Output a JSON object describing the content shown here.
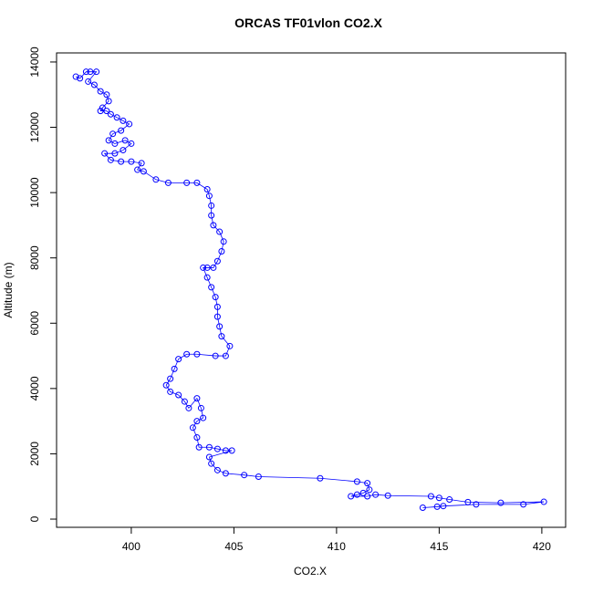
{
  "chart_data": {
    "type": "line",
    "marker": "circle",
    "color": "#0000ff",
    "title": "ORCAS TF01vlon CO2.X",
    "x_label": "CO2.X",
    "y_label": "Altitude (m)",
    "xlim": [
      396.36,
      421.16
    ],
    "ylim": [
      -251,
      14278
    ],
    "xticks": [
      400,
      405,
      410,
      415,
      420
    ],
    "yticks": [
      0,
      2000,
      4000,
      6000,
      8000,
      10000,
      12000,
      14000
    ],
    "x": [
      397.3,
      397.5,
      397.8,
      398.0,
      398.3,
      397.9,
      398.2,
      398.5,
      398.8,
      398.9,
      398.6,
      398.5,
      398.8,
      399.0,
      399.3,
      399.6,
      399.9,
      399.5,
      399.1,
      398.9,
      399.2,
      399.7,
      400.0,
      399.6,
      399.2,
      398.7,
      399.0,
      399.5,
      400.0,
      400.5,
      400.3,
      400.6,
      401.2,
      401.8,
      402.7,
      403.2,
      403.7,
      403.8,
      403.9,
      403.9,
      404.0,
      404.3,
      404.5,
      404.4,
      404.2,
      404.0,
      403.7,
      403.5,
      403.7,
      403.9,
      404.1,
      404.2,
      404.2,
      404.3,
      404.4,
      404.8,
      404.6,
      404.1,
      403.2,
      402.7,
      402.3,
      402.1,
      401.9,
      401.7,
      401.9,
      402.3,
      402.6,
      402.8,
      403.2,
      403.4,
      403.5,
      403.2,
      403.0,
      403.2,
      403.3,
      403.8,
      404.2,
      404.6,
      404.9,
      403.8,
      403.9,
      404.2,
      404.6,
      405.5,
      406.2,
      409.2,
      411.0,
      411.5,
      411.6,
      411.3,
      411.0,
      410.7,
      411.5,
      411.9,
      412.5,
      414.6,
      415.0,
      415.5,
      416.4,
      418.0,
      420.1,
      419.1,
      416.8,
      415.2,
      414.9,
      414.2
    ],
    "values": [
      13550,
      13500,
      13700,
      13700,
      13700,
      13400,
      13300,
      13100,
      13000,
      12800,
      12600,
      12500,
      12500,
      12400,
      12300,
      12200,
      12100,
      11900,
      11800,
      11600,
      11500,
      11600,
      11500,
      11300,
      11200,
      11200,
      11000,
      10950,
      10950,
      10900,
      10700,
      10650,
      10400,
      10300,
      10300,
      10300,
      10100,
      9900,
      9600,
      9300,
      9000,
      8800,
      8500,
      8200,
      7900,
      7700,
      7700,
      7700,
      7400,
      7100,
      6800,
      6500,
      6200,
      5900,
      5600,
      5300,
      5000,
      5000,
      5050,
      5050,
      4900,
      4600,
      4300,
      4100,
      3900,
      3800,
      3600,
      3400,
      3700,
      3400,
      3100,
      3000,
      2800,
      2500,
      2200,
      2200,
      2150,
      2100,
      2100,
      1900,
      1700,
      1500,
      1400,
      1350,
      1300,
      1250,
      1150,
      1100,
      900,
      800,
      750,
      700,
      700,
      750,
      720,
      700,
      650,
      600,
      520,
      500,
      530,
      450,
      450,
      400,
      380,
      350
    ]
  }
}
